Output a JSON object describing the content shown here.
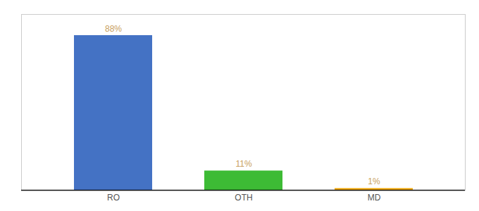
{
  "chart_data": {
    "type": "bar",
    "categories": [
      "RO",
      "OTH",
      "MD"
    ],
    "values": [
      88,
      11,
      1
    ],
    "value_labels": [
      "88%",
      "11%",
      "1%"
    ],
    "colors": [
      "#4472c4",
      "#3dbb35",
      "#f0a500"
    ],
    "ylim": [
      0,
      100
    ],
    "data_labels": true,
    "tick_labels": "x"
  }
}
